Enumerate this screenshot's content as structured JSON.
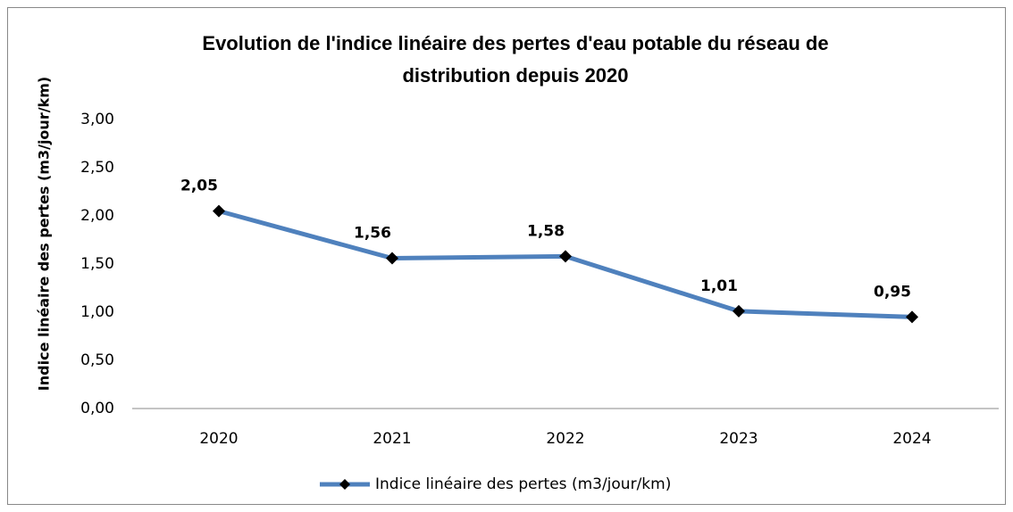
{
  "chart_data": {
    "type": "line",
    "title": "Evolution de l'indice linéaire des pertes d'eau potable du réseau de distribution depuis 2020",
    "ylabel": "Indice linéaire des pertes (m3/jour/km)",
    "categories": [
      "2020",
      "2021",
      "2022",
      "2023",
      "2024"
    ],
    "series": [
      {
        "name": "Indice linéaire des pertes (m3/jour/km)",
        "color": "#4f81bd",
        "values": [
          2.05,
          1.56,
          1.58,
          1.01,
          0.95
        ],
        "value_labels": [
          "2,05",
          "1,56",
          "1,58",
          "1,01",
          "0,95"
        ]
      }
    ],
    "ylim": [
      0,
      3
    ],
    "yticks": [
      {
        "value": 0,
        "label": "0,00"
      },
      {
        "value": 0.5,
        "label": "0,50"
      },
      {
        "value": 1,
        "label": "1,00"
      },
      {
        "value": 1.5,
        "label": "1,50"
      },
      {
        "value": 2,
        "label": "2,00"
      },
      {
        "value": 2.5,
        "label": "2,50"
      },
      {
        "value": 3,
        "label": "3,00"
      }
    ],
    "grid": false,
    "legend": "bottom"
  }
}
